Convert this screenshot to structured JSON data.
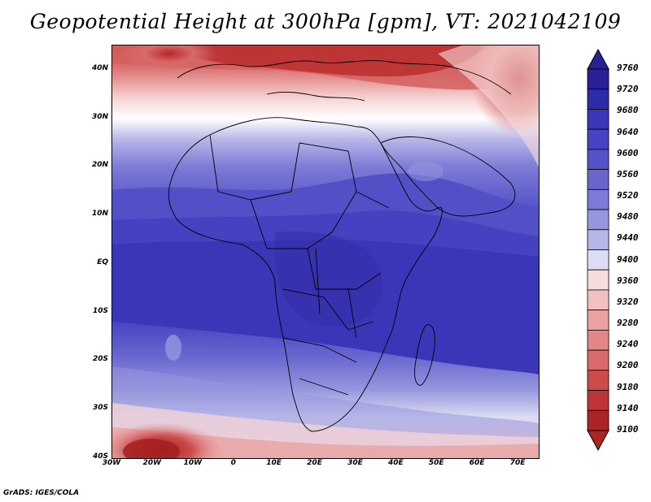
{
  "title": "Geopotential Height at 300hPa [gpm], VT: 2021042109",
  "credit": "GrADS: IGES/COLA",
  "map": {
    "variable": "Geopotential Height",
    "level": "300hPa",
    "units": "gpm",
    "valid_time": "2021042109",
    "lon_range": [
      -30,
      75
    ],
    "lat_range": [
      -40,
      45
    ],
    "lat_labels": [
      "40N",
      "30N",
      "20N",
      "10N",
      "EQ",
      "10S",
      "20S",
      "30S",
      "40S"
    ],
    "lat_values": [
      40,
      30,
      20,
      10,
      0,
      -10,
      -20,
      -30,
      -40
    ],
    "lon_labels": [
      "30W",
      "20W",
      "10W",
      "0",
      "10E",
      "20E",
      "30E",
      "40E",
      "50E",
      "60E",
      "70E"
    ],
    "lon_values": [
      -30,
      -20,
      -10,
      0,
      10,
      20,
      30,
      40,
      50,
      60,
      70
    ]
  },
  "colorbar": {
    "labels": [
      "9760",
      "9720",
      "9680",
      "9640",
      "9600",
      "9560",
      "9520",
      "9480",
      "9440",
      "9400",
      "9360",
      "9320",
      "9280",
      "9240",
      "9200",
      "9180",
      "9140",
      "9100"
    ],
    "colors": [
      "#2a1f96",
      "#2f2aa8",
      "#3a36b8",
      "#4644c2",
      "#5553c9",
      "#6766cf",
      "#7c7bd6",
      "#9696de",
      "#b6b6e8",
      "#dcdcf2",
      "#f8dcdc",
      "#f2c0c0",
      "#eaa2a2",
      "#e28686",
      "#d86a6a",
      "#cc4c4c",
      "#bf3434",
      "#ad2424"
    ]
  }
}
